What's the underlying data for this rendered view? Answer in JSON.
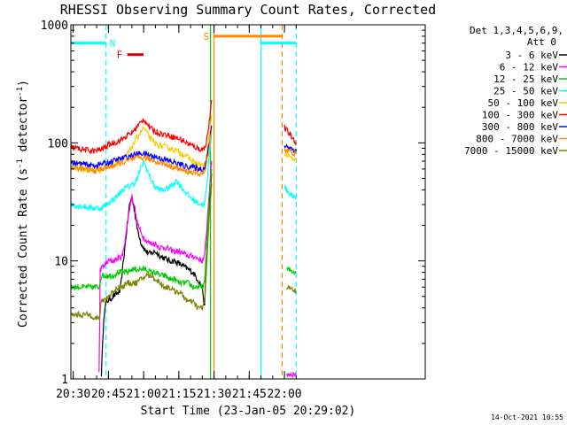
{
  "chart_data": {
    "type": "line",
    "title": "RHESSI Observing Summary Count Rates, Corrected",
    "xlabel": "Start Time (23-Jan-05 20:29:02)",
    "ylabel_prefix": "Corrected Count Rate (s",
    "ylabel_sup": "-1",
    "ylabel_suffix": " detector",
    "ylabel_sup2": "-1",
    "ylabel_close": ")",
    "yscale": "log",
    "ylim": [
      1,
      1000
    ],
    "xlim_min": [
      0,
      151
    ],
    "x_ticks": [
      {
        "m": 1,
        "label": "20:30"
      },
      {
        "m": 16,
        "label": "20:45"
      },
      {
        "m": 31,
        "label": "21:00"
      },
      {
        "m": 46,
        "label": "21:15"
      },
      {
        "m": 61,
        "label": "21:30"
      },
      {
        "m": 76,
        "label": "21:45"
      },
      {
        "m": 91,
        "label": "22:00"
      }
    ],
    "y_ticks": [
      {
        "v": 1,
        "label": "1"
      },
      {
        "v": 10,
        "label": "10"
      },
      {
        "v": 100,
        "label": "100"
      },
      {
        "v": 1000,
        "label": "1000"
      }
    ],
    "legend": {
      "placement": "right",
      "header1": "Det 1,3,4,5,6,9,",
      "header2": "Att 0"
    },
    "series": [
      {
        "name": "3 - 6 keV",
        "color": "#000000",
        "data": [
          [
            0,
            1.1
          ],
          [
            13,
            1.1
          ],
          [
            14,
            3.3
          ],
          [
            15,
            4.5
          ],
          [
            17,
            4.8
          ],
          [
            19,
            5.2
          ],
          [
            21,
            5.5
          ],
          [
            23,
            13
          ],
          [
            24,
            20
          ],
          [
            25,
            30
          ],
          [
            26,
            35
          ],
          [
            27,
            28
          ],
          [
            28,
            20
          ],
          [
            30,
            14
          ],
          [
            32,
            12
          ],
          [
            34,
            11.5
          ],
          [
            36,
            12
          ],
          [
            38,
            11
          ],
          [
            40,
            10.5
          ],
          [
            42,
            10
          ],
          [
            44,
            10
          ],
          [
            46,
            9.5
          ],
          [
            48,
            9
          ],
          [
            50,
            8.5
          ],
          [
            52,
            8
          ],
          [
            54,
            7
          ],
          [
            56,
            6
          ],
          [
            57,
            4
          ],
          [
            58,
            15
          ],
          [
            59,
            30
          ],
          [
            60,
            55
          ]
        ]
      },
      {
        "name": "6 - 12 keV",
        "color": "#ff00ff",
        "data": [
          [
            0,
            1.1
          ],
          [
            12,
            1.1
          ],
          [
            12.5,
            8.5
          ],
          [
            14,
            9
          ],
          [
            16,
            10
          ],
          [
            18,
            10
          ],
          [
            20,
            10.5
          ],
          [
            22,
            11
          ],
          [
            24,
            20
          ],
          [
            25,
            28
          ],
          [
            26,
            35
          ],
          [
            27,
            30
          ],
          [
            28,
            22
          ],
          [
            30,
            17
          ],
          [
            32,
            15
          ],
          [
            34,
            14
          ],
          [
            36,
            14
          ],
          [
            38,
            13
          ],
          [
            40,
            13
          ],
          [
            42,
            12.5
          ],
          [
            44,
            12
          ],
          [
            46,
            12
          ],
          [
            48,
            11.5
          ],
          [
            50,
            11
          ],
          [
            52,
            11
          ],
          [
            54,
            10.5
          ],
          [
            56,
            10
          ],
          [
            57,
            11
          ],
          [
            58,
            20
          ],
          [
            59,
            40
          ],
          [
            60,
            70
          ],
          [
            92,
            1.1
          ],
          [
            96,
            1.1
          ]
        ]
      },
      {
        "name": "12 - 25 keV",
        "color": "#00cc00",
        "data": [
          [
            0,
            6
          ],
          [
            6,
            6
          ],
          [
            10,
            6
          ],
          [
            12,
            6
          ],
          [
            13,
            7.5
          ],
          [
            16,
            7.5
          ],
          [
            18,
            7.5
          ],
          [
            20,
            8
          ],
          [
            22,
            8
          ],
          [
            24,
            8
          ],
          [
            26,
            8.5
          ],
          [
            28,
            8.5
          ],
          [
            30,
            8.5
          ],
          [
            32,
            8.5
          ],
          [
            34,
            8
          ],
          [
            36,
            8
          ],
          [
            38,
            7.5
          ],
          [
            40,
            7.5
          ],
          [
            42,
            7
          ],
          [
            44,
            7
          ],
          [
            46,
            6.5
          ],
          [
            48,
            6.5
          ],
          [
            50,
            6.5
          ],
          [
            52,
            6
          ],
          [
            54,
            6
          ],
          [
            56,
            6
          ],
          [
            57,
            6.5
          ],
          [
            58,
            15
          ],
          [
            59,
            35
          ],
          [
            60,
            60
          ],
          [
            92,
            8.5
          ],
          [
            96,
            8
          ]
        ]
      },
      {
        "name": "25 - 50 keV",
        "color": "#00ffff",
        "data": [
          [
            0,
            30
          ],
          [
            5,
            29
          ],
          [
            10,
            28
          ],
          [
            13,
            28
          ],
          [
            16,
            31
          ],
          [
            18,
            33
          ],
          [
            20,
            36
          ],
          [
            22,
            40
          ],
          [
            24,
            42
          ],
          [
            26,
            44
          ],
          [
            28,
            48
          ],
          [
            29,
            55
          ],
          [
            31,
            70
          ],
          [
            32,
            62
          ],
          [
            34,
            50
          ],
          [
            36,
            42
          ],
          [
            38,
            40
          ],
          [
            40,
            40
          ],
          [
            42,
            42
          ],
          [
            44,
            46
          ],
          [
            45,
            48
          ],
          [
            46,
            45
          ],
          [
            48,
            40
          ],
          [
            50,
            36
          ],
          [
            52,
            33
          ],
          [
            54,
            31
          ],
          [
            56,
            30
          ],
          [
            57,
            30
          ],
          [
            58,
            45
          ],
          [
            59,
            80
          ],
          [
            60,
            130
          ],
          [
            91,
            42
          ],
          [
            93,
            38
          ],
          [
            96,
            33
          ]
        ]
      },
      {
        "name": "50 - 100 keV",
        "color": "#ffcc00",
        "data": [
          [
            0,
            62
          ],
          [
            5,
            60
          ],
          [
            10,
            58
          ],
          [
            13,
            60
          ],
          [
            16,
            64
          ],
          [
            18,
            66
          ],
          [
            20,
            68
          ],
          [
            22,
            72
          ],
          [
            24,
            80
          ],
          [
            26,
            92
          ],
          [
            28,
            110
          ],
          [
            30,
            125
          ],
          [
            31,
            135
          ],
          [
            32,
            125
          ],
          [
            34,
            108
          ],
          [
            36,
            98
          ],
          [
            38,
            95
          ],
          [
            40,
            93
          ],
          [
            42,
            90
          ],
          [
            44,
            88
          ],
          [
            46,
            84
          ],
          [
            48,
            80
          ],
          [
            50,
            75
          ],
          [
            52,
            70
          ],
          [
            54,
            66
          ],
          [
            56,
            64
          ],
          [
            57,
            65
          ],
          [
            58,
            80
          ],
          [
            59,
            120
          ],
          [
            60,
            170
          ],
          [
            91,
            82
          ],
          [
            93,
            76
          ],
          [
            96,
            70
          ]
        ]
      },
      {
        "name": "100 - 300 keV",
        "color": "#ff0000",
        "data": [
          [
            0,
            92
          ],
          [
            5,
            88
          ],
          [
            10,
            85
          ],
          [
            13,
            88
          ],
          [
            16,
            96
          ],
          [
            18,
            100
          ],
          [
            20,
            102
          ],
          [
            22,
            108
          ],
          [
            24,
            115
          ],
          [
            26,
            122
          ],
          [
            28,
            135
          ],
          [
            30,
            150
          ],
          [
            31,
            160
          ],
          [
            32,
            150
          ],
          [
            34,
            132
          ],
          [
            36,
            125
          ],
          [
            38,
            120
          ],
          [
            40,
            118
          ],
          [
            42,
            115
          ],
          [
            44,
            112
          ],
          [
            46,
            108
          ],
          [
            48,
            104
          ],
          [
            50,
            98
          ],
          [
            52,
            94
          ],
          [
            54,
            90
          ],
          [
            56,
            88
          ],
          [
            57,
            90
          ],
          [
            58,
            110
          ],
          [
            59,
            150
          ],
          [
            60,
            230
          ],
          [
            91,
            135
          ],
          [
            93,
            120
          ],
          [
            96,
            100
          ]
        ]
      },
      {
        "name": "300 - 800 keV",
        "color": "#0000ff",
        "data": [
          [
            0,
            68
          ],
          [
            5,
            66
          ],
          [
            10,
            64
          ],
          [
            13,
            66
          ],
          [
            16,
            68
          ],
          [
            18,
            70
          ],
          [
            20,
            72
          ],
          [
            22,
            74
          ],
          [
            24,
            76
          ],
          [
            26,
            78
          ],
          [
            28,
            80
          ],
          [
            30,
            82
          ],
          [
            32,
            80
          ],
          [
            34,
            78
          ],
          [
            36,
            76
          ],
          [
            38,
            74
          ],
          [
            40,
            72
          ],
          [
            42,
            70
          ],
          [
            44,
            68
          ],
          [
            46,
            66
          ],
          [
            48,
            64
          ],
          [
            50,
            63
          ],
          [
            52,
            62
          ],
          [
            54,
            61
          ],
          [
            56,
            60
          ],
          [
            57,
            62
          ],
          [
            58,
            75
          ],
          [
            59,
            100
          ],
          [
            60,
            140
          ],
          [
            91,
            95
          ],
          [
            93,
            92
          ],
          [
            96,
            85
          ]
        ]
      },
      {
        "name": "800 - 7000 keV",
        "color": "#ff8800",
        "data": [
          [
            0,
            62
          ],
          [
            5,
            60
          ],
          [
            10,
            58
          ],
          [
            13,
            60
          ],
          [
            16,
            62
          ],
          [
            18,
            64
          ],
          [
            20,
            66
          ],
          [
            22,
            68
          ],
          [
            24,
            70
          ],
          [
            26,
            72
          ],
          [
            28,
            74
          ],
          [
            30,
            75
          ],
          [
            32,
            74
          ],
          [
            34,
            72
          ],
          [
            36,
            70
          ],
          [
            38,
            68
          ],
          [
            40,
            66
          ],
          [
            42,
            64
          ],
          [
            44,
            62
          ],
          [
            46,
            60
          ],
          [
            48,
            58
          ],
          [
            50,
            57
          ],
          [
            52,
            56
          ],
          [
            54,
            55
          ],
          [
            56,
            55
          ],
          [
            57,
            56
          ],
          [
            58,
            70
          ],
          [
            59,
            95
          ],
          [
            60,
            130
          ],
          [
            91,
            88
          ],
          [
            93,
            85
          ],
          [
            96,
            80
          ]
        ]
      },
      {
        "name": "7000 - 15000 keV",
        "color": "#808000",
        "data": [
          [
            0,
            3.5
          ],
          [
            4,
            3.5
          ],
          [
            8,
            3.5
          ],
          [
            12,
            3.2
          ],
          [
            13,
            4.5
          ],
          [
            16,
            5
          ],
          [
            18,
            5.5
          ],
          [
            20,
            6
          ],
          [
            22,
            6
          ],
          [
            24,
            6.5
          ],
          [
            26,
            6.5
          ],
          [
            28,
            6.5
          ],
          [
            30,
            7
          ],
          [
            32,
            7.5
          ],
          [
            34,
            7.5
          ],
          [
            36,
            7
          ],
          [
            38,
            6.5
          ],
          [
            40,
            6
          ],
          [
            42,
            6
          ],
          [
            44,
            5.5
          ],
          [
            46,
            5.5
          ],
          [
            48,
            5
          ],
          [
            50,
            4.5
          ],
          [
            52,
            4.5
          ],
          [
            54,
            4
          ],
          [
            56,
            4
          ],
          [
            57,
            4.5
          ],
          [
            58,
            10
          ],
          [
            59,
            25
          ],
          [
            60,
            45
          ],
          [
            92,
            6
          ],
          [
            96,
            5.5
          ]
        ]
      }
    ],
    "annotations": {
      "bars": [
        {
          "label": "N",
          "color": "#00ffff",
          "x1": 0,
          "x2": 15,
          "y": 700
        },
        {
          "label": "F",
          "color": "#dd0000",
          "x1": 24,
          "x2": 31,
          "y": 560
        },
        {
          "label": "S",
          "color": "#ff8800",
          "x1": 61,
          "x2": 90,
          "y": 800
        },
        {
          "label": "",
          "color": "#00ffff",
          "x1": 81,
          "x2": 96,
          "y": 700
        }
      ],
      "vlines": [
        {
          "x": 15,
          "color": "#00ffff",
          "dash": true
        },
        {
          "x": 59.5,
          "color": "#00cc00",
          "dash": false
        },
        {
          "x": 61,
          "color": "#ff8800",
          "dash": false
        },
        {
          "x": 81,
          "color": "#00ffff",
          "dash": false
        },
        {
          "x": 90,
          "color": "#ff8800",
          "dash": true
        },
        {
          "x": 96,
          "color": "#00ffff",
          "dash": true
        }
      ]
    },
    "timestamp": "14-Oct-2021 10:55"
  }
}
